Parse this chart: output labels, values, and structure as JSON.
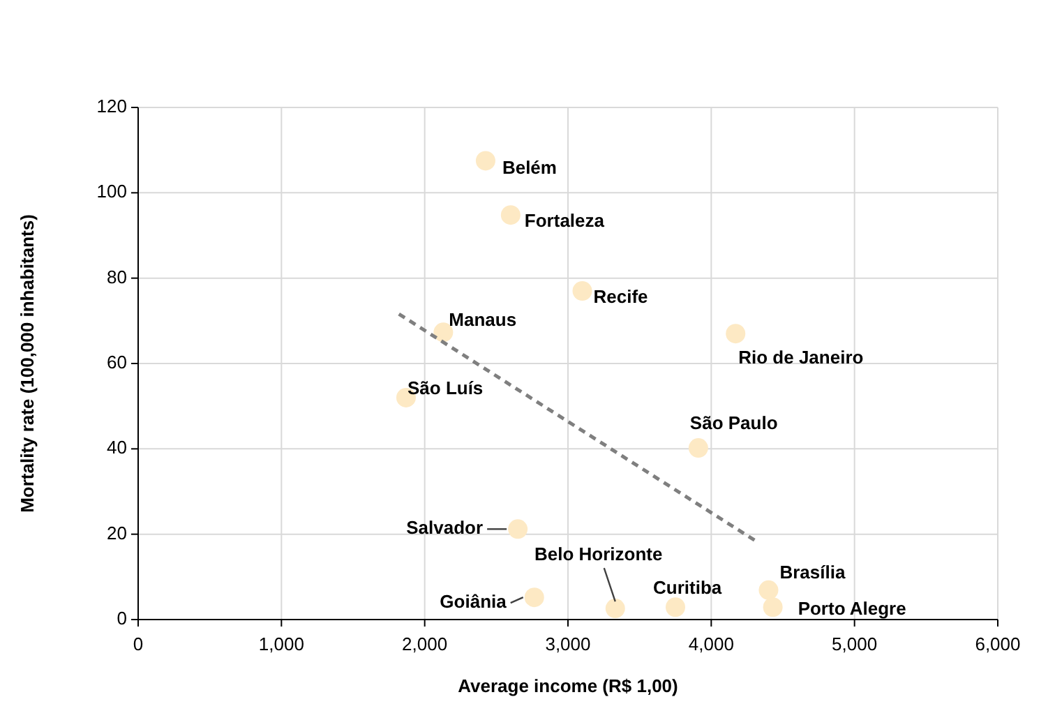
{
  "chart_data": {
    "type": "scatter",
    "xlabel": "Average income (R$ 1,00)",
    "ylabel": "Mortality rate (100,000 inhabitants)",
    "xlim": [
      0,
      6000
    ],
    "ylim": [
      0,
      120
    ],
    "xticks": [
      {
        "value": 0,
        "label": "0"
      },
      {
        "value": 1000,
        "label": "1,000"
      },
      {
        "value": 2000,
        "label": "2,000"
      },
      {
        "value": 3000,
        "label": "3,000"
      },
      {
        "value": 4000,
        "label": "4,000"
      },
      {
        "value": 5000,
        "label": "5,000"
      },
      {
        "value": 6000,
        "label": "6,000"
      }
    ],
    "yticks": [
      0,
      20,
      40,
      60,
      80,
      100,
      120
    ],
    "grid": true,
    "marker": "circle",
    "series": [
      {
        "name": "Belém",
        "color": "#fde9c4",
        "x": [
          2425
        ],
        "values": [
          107.5
        ]
      },
      {
        "name": "Fortaleza",
        "color": "#fde9c4",
        "x": [
          2600
        ],
        "values": [
          94.8
        ]
      },
      {
        "name": "Recife",
        "color": "#fde9c4",
        "x": [
          3100
        ],
        "values": [
          77
        ]
      },
      {
        "name": "Manaus",
        "color": "#fde9c4",
        "x": [
          2130
        ],
        "values": [
          67.3
        ]
      },
      {
        "name": "Rio de Janeiro",
        "color": "#fde9c4",
        "x": [
          4170
        ],
        "values": [
          67
        ]
      },
      {
        "name": "São Luís",
        "color": "#fde9c4",
        "x": [
          1870
        ],
        "values": [
          52
        ]
      },
      {
        "name": "São Paulo",
        "color": "#fde9c4",
        "x": [
          3910
        ],
        "values": [
          40.2
        ]
      },
      {
        "name": "Salvador",
        "color": "#fde9c4",
        "x": [
          2650
        ],
        "values": [
          21.2
        ]
      },
      {
        "name": "Belo Horizonte",
        "color": "#fde9c4",
        "x": [
          3330
        ],
        "values": [
          2.6
        ]
      },
      {
        "name": "Goiânia",
        "color": "#fde9c4",
        "x": [
          2765
        ],
        "values": [
          5.2
        ]
      },
      {
        "name": "Curitiba",
        "color": "#fde9c4",
        "x": [
          3750
        ],
        "values": [
          2.9
        ]
      },
      {
        "name": "Brasília",
        "color": "#fde9c4",
        "x": [
          4400
        ],
        "values": [
          6.9
        ]
      },
      {
        "name": "Porto Alegre",
        "color": "#fde9c4",
        "x": [
          4430
        ],
        "values": [
          2.9
        ]
      },
      {
        "type": "line",
        "color": "#7f7f7f",
        "line_style": "dashed",
        "marker": "none",
        "x": [
          1820,
          4330
        ],
        "values": [
          71.6,
          18
        ]
      }
    ]
  }
}
